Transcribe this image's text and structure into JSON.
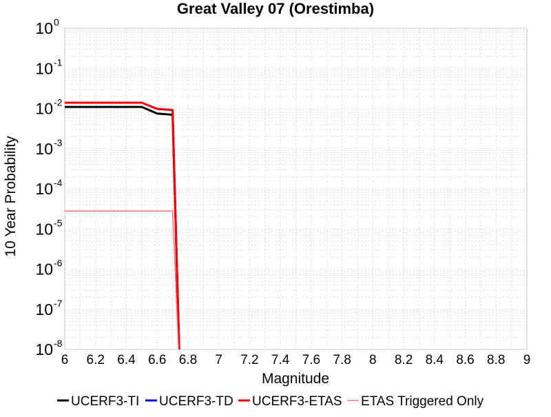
{
  "chart_data": {
    "type": "line",
    "title": "Great Valley 07 (Orestimba)",
    "xlabel": "Magnitude",
    "ylabel": "10 Year Probability",
    "xlim": [
      6,
      9
    ],
    "ylim": [
      1e-08,
      1
    ],
    "yscale": "log",
    "grid": true,
    "legend_position": "bottom",
    "x_ticks": [
      "6",
      "6.2",
      "6.4",
      "6.6",
      "6.8",
      "7",
      "7.2",
      "7.4",
      "7.6",
      "7.8",
      "8",
      "8.2",
      "8.4",
      "8.6",
      "8.8",
      "9"
    ],
    "y_ticks": [
      {
        "base": "10",
        "exp": "0"
      },
      {
        "base": "10",
        "exp": "-1"
      },
      {
        "base": "10",
        "exp": "-2"
      },
      {
        "base": "10",
        "exp": "-3"
      },
      {
        "base": "10",
        "exp": "-4"
      },
      {
        "base": "10",
        "exp": "-5"
      },
      {
        "base": "10",
        "exp": "-6"
      },
      {
        "base": "10",
        "exp": "-7"
      },
      {
        "base": "10",
        "exp": "-8"
      }
    ],
    "series": [
      {
        "name": "UCERF3-TI",
        "color": "#000000",
        "width": 3,
        "x": [
          6.0,
          6.5,
          6.6,
          6.7,
          6.75
        ],
        "y": [
          0.011,
          0.011,
          0.0075,
          0.007,
          1e-09
        ]
      },
      {
        "name": "UCERF3-TD",
        "color": "#0000ff",
        "width": 3,
        "x": [
          6.0,
          6.5,
          6.6,
          6.7,
          6.75
        ],
        "y": [
          0.014,
          0.014,
          0.0098,
          0.0092,
          1e-09
        ]
      },
      {
        "name": "UCERF3-ETAS",
        "color": "#ff0000",
        "width": 3,
        "x": [
          6.0,
          6.5,
          6.6,
          6.7,
          6.75
        ],
        "y": [
          0.014,
          0.014,
          0.0098,
          0.0092,
          1e-09
        ]
      },
      {
        "name": "ETAS Triggered Only",
        "color": "#ff6666",
        "width": 1.3,
        "x": [
          6.0,
          6.7,
          6.75
        ],
        "y": [
          2.8e-05,
          2.8e-05,
          1e-09
        ]
      }
    ]
  }
}
